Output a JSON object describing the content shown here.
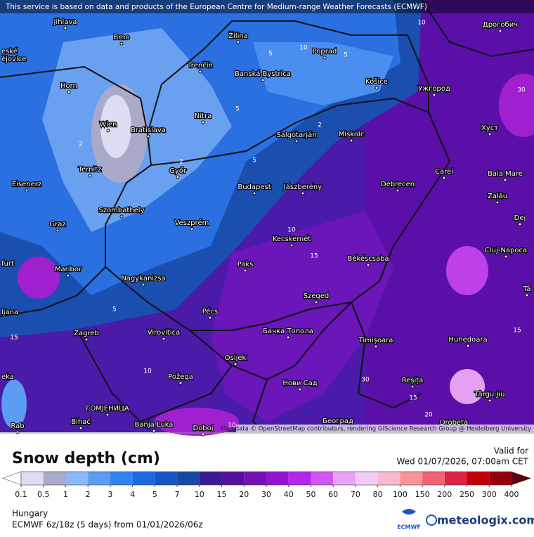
{
  "notice": "This service is based on data and products of the European Centre for Medium-range Weather Forecasts (ECMWF)",
  "attribution": "Map data © OpenStreetMap contributors, rendering GIScience Research Group @ Heidelberg University",
  "cities": [
    "Jihlava",
    "Brno",
    "Žilina",
    "Poprad",
    "Дрогобич",
    "eské",
    "ějovice",
    "Trenčín",
    "Banská Bystrica",
    "Košice",
    "Ужгород",
    "Horn",
    "Nitra",
    "Wien",
    "Bratislava",
    "Salgótarján",
    "Miskolc",
    "Хуст",
    "Ternitz",
    "Győr",
    "Carei",
    "Baia Mare",
    "Eisenerz",
    "Budapest",
    "Jászberény",
    "Debrecen",
    "Zalău",
    "Szombathely",
    "Graz",
    "Veszprém",
    "Dej",
    "Kecskemét",
    "Cluj-Napoca",
    "furt",
    "Maribor",
    "Paks",
    "Békéscsaba",
    "Nagykanizsa",
    "ljana",
    "Pécs",
    "Szeged",
    "Tâ",
    "Zagreb",
    "Virovitica",
    "Бачка Топола",
    "Timișoara",
    "Hunedoara",
    "Osijek",
    "eka",
    "Požega",
    "Нови Сад",
    "Reșița",
    "Târgu Jiu",
    "ГОМЈЕНИЦА",
    "Bihać",
    "Banja Luka",
    "Doboj",
    "Београд",
    "Drobeta",
    "Rab"
  ],
  "contour_labels": [
    "10",
    "5",
    "10",
    "5",
    "2",
    "5",
    "2",
    "5",
    "2",
    "10",
    "15",
    "5",
    "10",
    "30",
    "15",
    "30",
    "15",
    "10",
    "15",
    "20"
  ],
  "legend": {
    "title": "Snow depth (cm)",
    "ticks": [
      0.1,
      0.5,
      1,
      2,
      3,
      4,
      5,
      7,
      10,
      15,
      20,
      30,
      40,
      50,
      60,
      70,
      80,
      100,
      150,
      200,
      250,
      300,
      400
    ],
    "colors": [
      "#dcdcf4",
      "#a9a9c9",
      "#8cb8f8",
      "#5c9cf2",
      "#3282f0",
      "#1c6ae0",
      "#1756c2",
      "#154aa0",
      "#3a1a94",
      "#55109e",
      "#7212b4",
      "#9414d2",
      "#b426ea",
      "#d256f2",
      "#e8a4f4",
      "#f2ccf4",
      "#f8b8d2",
      "#f89494",
      "#f06472",
      "#de2244",
      "#c00008",
      "#92000e"
    ],
    "under_color": "#ffffff",
    "over_color": "#5a0010"
  },
  "valid": {
    "label": "Valid for",
    "time": "Wed 01/07/2026, 07:00am CET"
  },
  "region": "Hungary",
  "model": "ECMWF 6z/18z (5 days) from 01/01/2026/06z",
  "ecmwf_logo": "ECMWF",
  "brand": "meteologix.com"
}
